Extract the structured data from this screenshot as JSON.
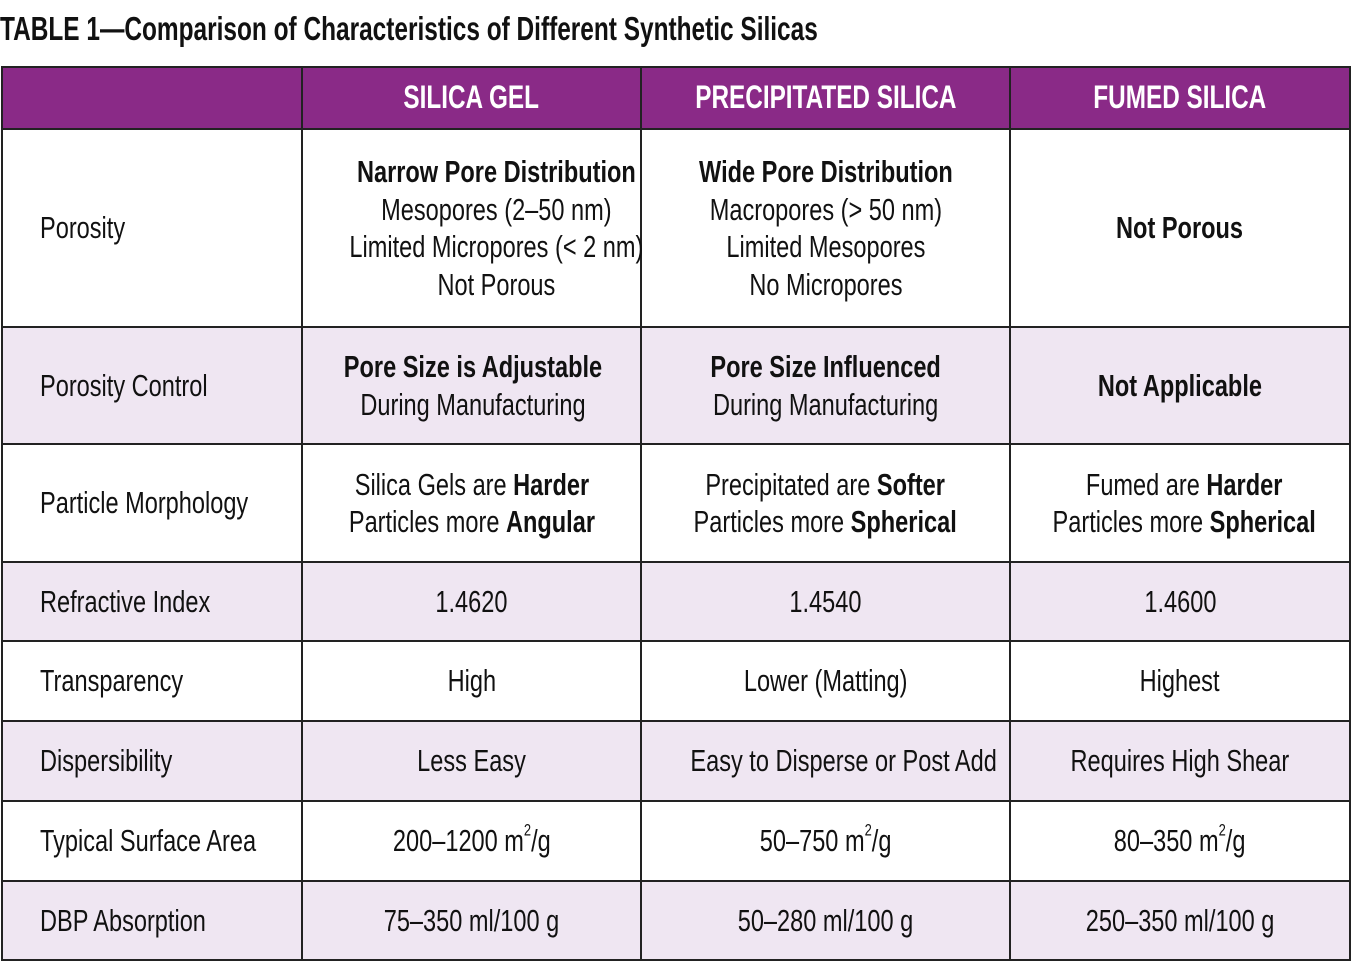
{
  "title": "TABLE 1—Comparison of Characteristics of Different Synthetic Silicas",
  "colors": {
    "header": "#8a2a87",
    "stripe": "#efe6f2",
    "border": "#222222"
  },
  "columns": [
    "",
    "SILICA GEL",
    "PRECIPITATED SILICA",
    "FUMED SILICA"
  ],
  "rows": [
    {
      "label": "Porosity",
      "cells": [
        [
          [
            {
              "t": "Narrow Pore Distribution",
              "b": true
            }
          ],
          [
            {
              "t": "Mesopores (2–50 nm)"
            }
          ],
          [
            {
              "t": "Limited Micropores (< 2 nm)"
            }
          ],
          [
            {
              "t": "Not Porous"
            }
          ]
        ],
        [
          [
            {
              "t": "Wide Pore Distribution",
              "b": true
            }
          ],
          [
            {
              "t": "Macropores (> 50 nm)"
            }
          ],
          [
            {
              "t": "Limited Mesopores"
            }
          ],
          [
            {
              "t": "No Micropores"
            }
          ]
        ],
        [
          [
            {
              "t": "Not Porous",
              "b": true
            }
          ]
        ]
      ]
    },
    {
      "label": "Porosity Control",
      "cells": [
        [
          [
            {
              "t": "Pore Size is Adjustable",
              "b": true
            }
          ],
          [
            {
              "t": "During Manufacturing"
            }
          ]
        ],
        [
          [
            {
              "t": "Pore Size Influenced",
              "b": true
            }
          ],
          [
            {
              "t": "During Manufacturing"
            }
          ]
        ],
        [
          [
            {
              "t": "Not Applicable",
              "b": true
            }
          ]
        ]
      ]
    },
    {
      "label": "Particle Morphology",
      "cells": [
        [
          [
            {
              "t": "Silica Gels are "
            },
            {
              "t": "Harder",
              "b": true
            }
          ],
          [
            {
              "t": "Particles more "
            },
            {
              "t": "Angular",
              "b": true
            }
          ]
        ],
        [
          [
            {
              "t": "Precipitated are "
            },
            {
              "t": "Softer",
              "b": true
            }
          ],
          [
            {
              "t": "Particles more "
            },
            {
              "t": "Spherical",
              "b": true
            }
          ]
        ],
        [
          [
            {
              "t": "Fumed are "
            },
            {
              "t": "Harder",
              "b": true
            }
          ],
          [
            {
              "t": "Particles more "
            },
            {
              "t": "Spherical",
              "b": true
            }
          ]
        ]
      ]
    },
    {
      "label": "Refractive Index",
      "cells": [
        [
          [
            {
              "t": "1.4620"
            }
          ]
        ],
        [
          [
            {
              "t": "1.4540"
            }
          ]
        ],
        [
          [
            {
              "t": "1.4600"
            }
          ]
        ]
      ]
    },
    {
      "label": "Transparency",
      "cells": [
        [
          [
            {
              "t": "High"
            }
          ]
        ],
        [
          [
            {
              "t": "Lower (Matting)"
            }
          ]
        ],
        [
          [
            {
              "t": "Highest"
            }
          ]
        ]
      ]
    },
    {
      "label": "Dispersibility",
      "cells": [
        [
          [
            {
              "t": "Less Easy"
            }
          ]
        ],
        [
          [
            {
              "t": "Easy to Disperse or Post Add"
            }
          ]
        ],
        [
          [
            {
              "t": "Requires High Shear"
            }
          ]
        ]
      ]
    },
    {
      "label": "Typical Surface Area",
      "cells": [
        [
          [
            {
              "t": "200–1200 m"
            },
            {
              "t": "2",
              "sup": true
            },
            {
              "t": "/g"
            }
          ]
        ],
        [
          [
            {
              "t": "50–750 m"
            },
            {
              "t": "2",
              "sup": true
            },
            {
              "t": "/g"
            }
          ]
        ],
        [
          [
            {
              "t": "80–350 m"
            },
            {
              "t": "2",
              "sup": true
            },
            {
              "t": "/g"
            }
          ]
        ]
      ]
    },
    {
      "label": "DBP Absorption",
      "cells": [
        [
          [
            {
              "t": "75–350 ml/100 g"
            }
          ]
        ],
        [
          [
            {
              "t": "50–280 ml/100 g"
            }
          ]
        ],
        [
          [
            {
              "t": "250–350 ml/100 g"
            }
          ]
        ]
      ]
    }
  ]
}
